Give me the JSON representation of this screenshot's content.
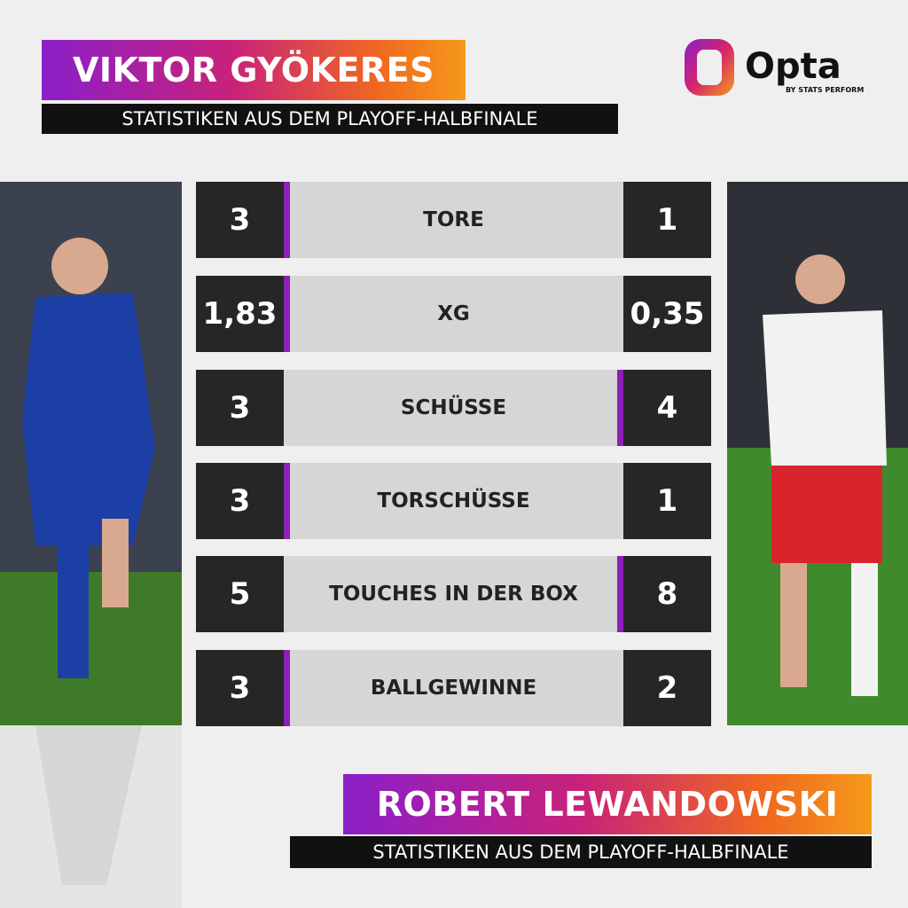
{
  "header": {
    "title": "VIKTOR GYÖKERES",
    "subtitle": "STATISTIKEN AUS DEM PLAYOFF-HALBFINALE"
  },
  "logo": {
    "name": "Opta",
    "tagline": "BY STATS PERFORM"
  },
  "table": {
    "rows": [
      {
        "label": "TORE",
        "left": "3",
        "right": "1",
        "leader": "left"
      },
      {
        "label": "XG",
        "left": "1,83",
        "right": "0,35",
        "leader": "left"
      },
      {
        "label": "SCHÜSSE",
        "left": "3",
        "right": "4",
        "leader": "right"
      },
      {
        "label": "TORSCHÜSSE",
        "left": "3",
        "right": "1",
        "leader": "left"
      },
      {
        "label": "TOUCHES IN DER BOX",
        "left": "5",
        "right": "8",
        "leader": "right"
      },
      {
        "label": "BALLGEWINNE",
        "left": "3",
        "right": "2",
        "leader": "left"
      }
    ]
  },
  "footer": {
    "title": "ROBERT LEWANDOWSKI",
    "subtitle": "STATISTIKEN AUS DEM PLAYOFF-HALBFINALE"
  }
}
